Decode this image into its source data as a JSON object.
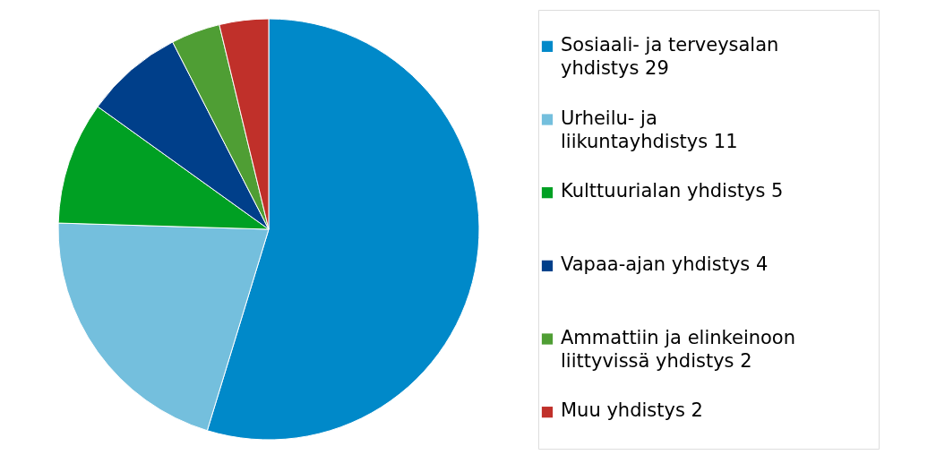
{
  "chart_data": {
    "type": "pie",
    "categories": [
      "Sosiaali- ja terveysalan yhdistys 29",
      "Urheilu- ja liikuntayhdistys 11",
      "Kulttuurialan yhdistys  5",
      "Vapaa-ajan yhdistys  4",
      "Ammattiin ja elinkeinoon liittyvissä yhdistys 2",
      "Muu yhdistys  2"
    ],
    "values": [
      29,
      11,
      5,
      4,
      2,
      2
    ],
    "colors": [
      "#0089c9",
      "#74bfdd",
      "#00a023",
      "#003f8a",
      "#4f9e34",
      "#c0302a"
    ],
    "legend": "right"
  }
}
